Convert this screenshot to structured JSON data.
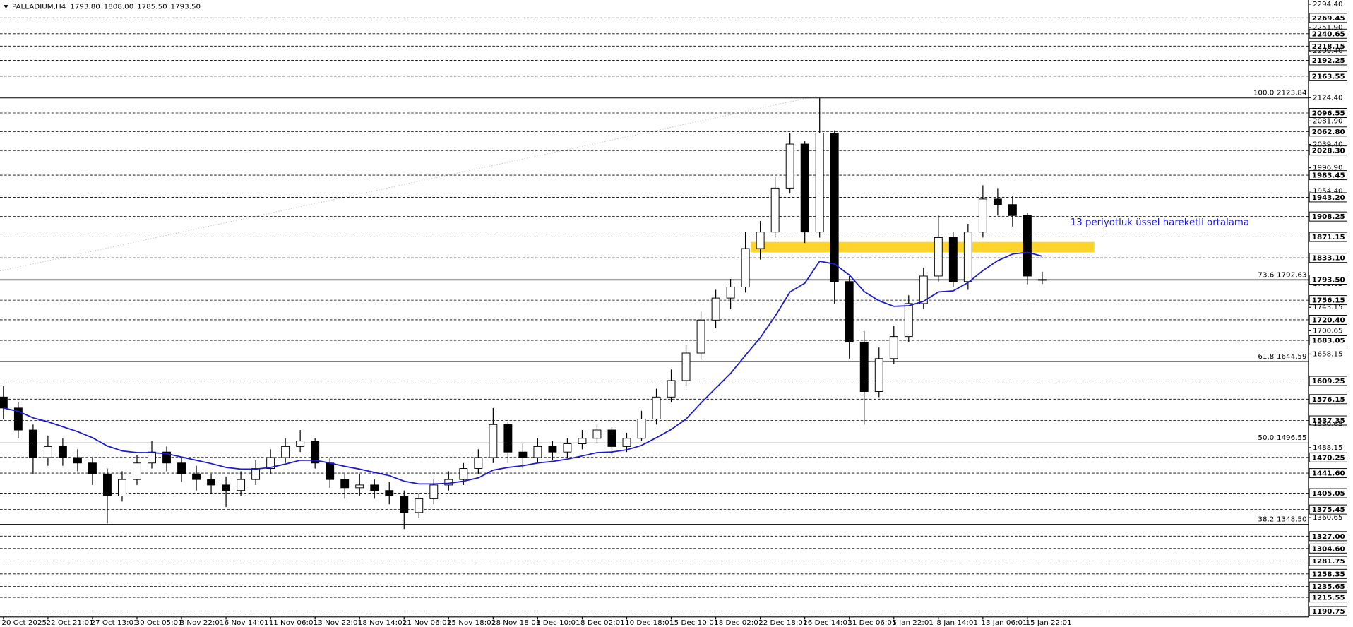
{
  "chart_data": {
    "type": "candlestick",
    "symbol": "PALLADIUM,H4",
    "ohlc_text": [
      "1793.80",
      "1808.00",
      "1785.50",
      "1793.50"
    ],
    "open": [
      1580,
      1560,
      1520,
      1470,
      1490,
      1470,
      1460,
      1440,
      1400,
      1430,
      1460,
      1480,
      1460,
      1440,
      1430,
      1420,
      1410,
      1430,
      1450,
      1470,
      1490,
      1500,
      1460,
      1430,
      1415,
      1420,
      1410,
      1400,
      1370,
      1395,
      1420,
      1430,
      1450,
      1470,
      1530,
      1480,
      1470,
      1490,
      1480,
      1495,
      1505,
      1520,
      1490,
      1505,
      1540,
      1580,
      1610,
      1660,
      1720,
      1760,
      1780,
      1850,
      1880,
      1960,
      2040,
      1880,
      2060,
      1790,
      1680,
      1590,
      1650,
      1690,
      1750,
      1800,
      1870,
      1790,
      1880,
      1940,
      1930,
      1910,
      1793.8
    ],
    "high": [
      1600,
      1570,
      1530,
      1510,
      1505,
      1485,
      1470,
      1450,
      1445,
      1475,
      1500,
      1490,
      1470,
      1455,
      1440,
      1435,
      1445,
      1465,
      1485,
      1505,
      1520,
      1505,
      1470,
      1440,
      1440,
      1430,
      1425,
      1410,
      1405,
      1430,
      1445,
      1460,
      1485,
      1560,
      1535,
      1495,
      1505,
      1500,
      1505,
      1520,
      1530,
      1525,
      1515,
      1555,
      1595,
      1630,
      1675,
      1735,
      1775,
      1795,
      1880,
      1900,
      1980,
      2060,
      2045,
      2124,
      2065,
      1800,
      1700,
      1670,
      1710,
      1765,
      1815,
      1910,
      1880,
      1895,
      1965,
      1960,
      1945,
      1915,
      1808
    ],
    "low": [
      1540,
      1505,
      1440,
      1455,
      1455,
      1445,
      1420,
      1350,
      1390,
      1420,
      1450,
      1445,
      1425,
      1410,
      1405,
      1380,
      1400,
      1420,
      1440,
      1460,
      1480,
      1450,
      1415,
      1395,
      1400,
      1395,
      1385,
      1340,
      1360,
      1385,
      1410,
      1420,
      1440,
      1460,
      1460,
      1450,
      1460,
      1465,
      1470,
      1485,
      1495,
      1475,
      1480,
      1500,
      1530,
      1570,
      1600,
      1650,
      1705,
      1740,
      1770,
      1830,
      1870,
      1950,
      1860,
      1870,
      1750,
      1650,
      1530,
      1580,
      1640,
      1680,
      1740,
      1790,
      1780,
      1775,
      1870,
      1910,
      1890,
      1785,
      1785.5
    ],
    "close": [
      1560,
      1520,
      1470,
      1490,
      1470,
      1460,
      1440,
      1400,
      1430,
      1460,
      1480,
      1460,
      1440,
      1430,
      1420,
      1410,
      1430,
      1450,
      1470,
      1490,
      1500,
      1460,
      1430,
      1415,
      1420,
      1410,
      1400,
      1370,
      1395,
      1420,
      1430,
      1450,
      1470,
      1530,
      1480,
      1470,
      1490,
      1480,
      1495,
      1505,
      1520,
      1490,
      1505,
      1540,
      1580,
      1610,
      1660,
      1720,
      1760,
      1780,
      1850,
      1880,
      1960,
      2040,
      1880,
      2060,
      1790,
      1680,
      1590,
      1650,
      1690,
      1750,
      1800,
      1870,
      1790,
      1880,
      1940,
      1930,
      1910,
      1800,
      1793.5
    ],
    "up_color": "#ffffff",
    "down_color": "#000000",
    "wick_color": "#000000",
    "ema": {
      "name": "13 periyotluk üssel hareketli ortalama",
      "color": "#1a1ad6",
      "values": [
        1560,
        1554,
        1542,
        1535,
        1526,
        1517,
        1506,
        1491,
        1482,
        1479,
        1479,
        1477,
        1471,
        1465,
        1459,
        1452,
        1449,
        1449,
        1452,
        1458,
        1465,
        1465,
        1460,
        1454,
        1449,
        1443,
        1437,
        1427,
        1422,
        1422,
        1423,
        1427,
        1433,
        1447,
        1452,
        1455,
        1460,
        1463,
        1467,
        1473,
        1479,
        1480,
        1484,
        1492,
        1506,
        1521,
        1540,
        1569,
        1596,
        1623,
        1656,
        1688,
        1727,
        1771,
        1787,
        1827,
        1822,
        1802,
        1772,
        1755,
        1745,
        1746,
        1754,
        1771,
        1773,
        1788,
        1810,
        1828,
        1840,
        1843,
        1836
      ]
    },
    "zone": [
      1843,
      1862
    ],
    "zone_color": "#ffd21f",
    "xticks": [
      {
        "value": 0,
        "label": "20 Oct 2025"
      },
      {
        "value": 3,
        "label": "22 Oct 21:01"
      },
      {
        "value": 6,
        "label": "27 Oct 13:01"
      },
      {
        "value": 9,
        "label": "30 Oct 05:01"
      },
      {
        "value": 12,
        "label": "3 Nov 22:01"
      },
      {
        "value": 15,
        "label": "6 Nov 14:01"
      },
      {
        "value": 18,
        "label": "11 Nov 06:01"
      },
      {
        "value": 21,
        "label": "13 Nov 22:01"
      },
      {
        "value": 24,
        "label": "18 Nov 14:01"
      },
      {
        "value": 27,
        "label": "21 Nov 06:01"
      },
      {
        "value": 30,
        "label": "25 Nov 18:01"
      },
      {
        "value": 33,
        "label": "28 Nov 18:01"
      },
      {
        "value": 36,
        "label": "3 Dec 10:01"
      },
      {
        "value": 39,
        "label": "8 Dec 02:01"
      },
      {
        "value": 42,
        "label": "10 Dec 18:01"
      },
      {
        "value": 45,
        "label": "15 Dec 10:01"
      },
      {
        "value": 48,
        "label": "18 Dec 02:01"
      },
      {
        "value": 51,
        "label": "22 Dec 18:01"
      },
      {
        "value": 54,
        "label": "26 Dec 14:01"
      },
      {
        "value": 57,
        "label": "31 Dec 06:01"
      },
      {
        "value": 60,
        "label": "5 Jan 22:01"
      },
      {
        "value": 63,
        "label": "8 Jan 14:01"
      },
      {
        "value": 66,
        "label": "13 Jan 06:01"
      },
      {
        "value": 69,
        "label": "15 Jan 22:01"
      }
    ],
    "ylim": [
      1180,
      2302
    ],
    "yticks": [
      {
        "value": 2294.4,
        "label": "2294.40"
      },
      {
        "value": 2251.9,
        "label": "2251.90"
      },
      {
        "value": 2209.4,
        "label": "2209.40"
      },
      {
        "value": 2124.4,
        "label": "2124.40"
      },
      {
        "value": 2081.9,
        "label": "2081.90"
      },
      {
        "value": 2039.4,
        "label": "2039.40"
      },
      {
        "value": 1996.9,
        "label": "1996.90"
      },
      {
        "value": 1954.4,
        "label": "1954.40"
      },
      1785.65,
      1743.15,
      1700.65,
      1658.15,
      1530.65,
      1488.15,
      1360.65
    ],
    "levels": [
      2269.45,
      2240.65,
      2218.15,
      2192.25,
      2163.55,
      2096.55,
      {
        "value": 2062.8,
        "label": "2062.80"
      },
      {
        "value": 2028.3,
        "label": "2028.30"
      },
      1983.45,
      {
        "value": 1943.2,
        "label": "1943.20"
      },
      1908.25,
      1871.15,
      {
        "value": 1833.1,
        "label": "1833.10"
      },
      1756.15,
      {
        "value": 1720.4,
        "label": "1720.40"
      },
      1683.05,
      1609.25,
      1576.15,
      1537.35,
      1470.25,
      {
        "value": 1441.6,
        "label": "1441.60"
      },
      1405.05,
      1375.45,
      {
        "value": 1327,
        "label": "1327.00"
      },
      {
        "value": 1304.6,
        "label": "1304.60"
      },
      1281.75,
      1258.35,
      1235.65,
      1215.55,
      1190.75
    ],
    "current_price": {
      "value": 1793.5,
      "label": "1793.50"
    },
    "fib": [
      {
        "level": "100.0",
        "price": 2123.84
      },
      {
        "level": "73.6",
        "price": 1792.63
      },
      {
        "level": "61.8",
        "price": 1644.59
      },
      {
        "level": "50.0",
        "price": 1496.55
      },
      {
        "level": "38.2",
        "price": {
          "value": 1348.5,
          "label": "1348.50"
        }
      }
    ]
  }
}
